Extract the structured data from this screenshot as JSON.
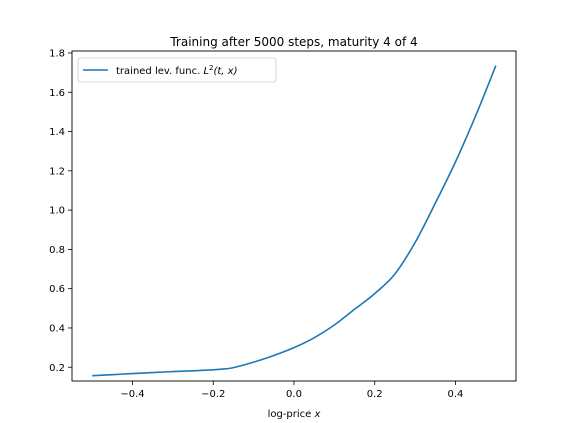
{
  "chart_data": {
    "type": "line",
    "title": "Training after 5000 steps, maturity 4 of 4",
    "xlabel": "log-price",
    "xlabel_var": "x",
    "ylabel": "",
    "xlim": [
      -0.55,
      0.55
    ],
    "ylim": [
      0.13,
      1.81
    ],
    "xticks": [
      -0.4,
      -0.2,
      0.0,
      0.2,
      0.4
    ],
    "xtick_labels": [
      "−0.4",
      "−0.2",
      "0.0",
      "0.2",
      "0.4"
    ],
    "yticks": [
      0.2,
      0.4,
      0.6,
      0.8,
      1.0,
      1.2,
      1.4,
      1.6,
      1.8
    ],
    "ytick_labels": [
      "0.2",
      "0.4",
      "0.6",
      "0.8",
      "1.0",
      "1.2",
      "1.4",
      "1.6",
      "1.8"
    ],
    "grid": false,
    "legend_position": "top-left",
    "series": [
      {
        "name": "trained lev. func. L²(t, x)",
        "color": "#1f77b4",
        "x": [
          -0.5,
          -0.45,
          -0.4,
          -0.35,
          -0.3,
          -0.25,
          -0.2,
          -0.17,
          -0.15,
          -0.1,
          -0.05,
          0.0,
          0.05,
          0.1,
          0.15,
          0.2,
          0.25,
          0.3,
          0.35,
          0.4,
          0.45,
          0.5
        ],
        "y": [
          0.157,
          0.162,
          0.168,
          0.173,
          0.178,
          0.182,
          0.187,
          0.192,
          0.198,
          0.226,
          0.26,
          0.3,
          0.35,
          0.415,
          0.495,
          0.575,
          0.675,
          0.835,
          1.035,
          1.245,
          1.48,
          1.735
        ]
      }
    ]
  },
  "legend": {
    "label_text": "trained lev. func. ",
    "label_math_base": "L",
    "label_math_sup": "2",
    "label_math_args": "(t, x)"
  }
}
